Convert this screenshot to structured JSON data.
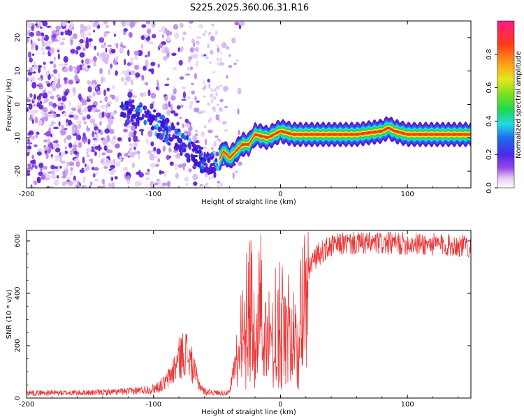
{
  "title": "S225.2025.360.06.31.R16",
  "chart_data": [
    {
      "type": "heatmap",
      "name": "spectrogram",
      "xlabel": "Height of straight line (km)",
      "ylabel": "Frequency (Hz)",
      "xlim": [
        -200,
        150
      ],
      "ylim": [
        -25,
        25
      ],
      "x_ticks": [
        "-200",
        "-100",
        "0",
        "100"
      ],
      "y_ticks": [
        "-20",
        "-10",
        "0",
        "10",
        "20"
      ],
      "ridge": {
        "x": [
          -120,
          -110,
          -100,
          -90,
          -80,
          -70,
          -60,
          -50,
          -45,
          -40,
          -35,
          -30,
          -25,
          -20,
          -10,
          0,
          10,
          20,
          40,
          60,
          80,
          85,
          90,
          100,
          120,
          150
        ],
        "y": [
          -2,
          -3,
          -5,
          -8,
          -11,
          -14,
          -17,
          -18,
          -14,
          -16,
          -14,
          -12,
          -12,
          -9,
          -10,
          -8,
          -9,
          -9,
          -9,
          -9,
          -8,
          -7,
          -8,
          -9,
          -9,
          -9
        ]
      },
      "colorbar": {
        "label": "Normalized spectral amplitude",
        "ticks": [
          "0.0",
          "0.2",
          "0.4",
          "0.6",
          "0.8"
        ],
        "range": [
          0,
          1
        ]
      }
    },
    {
      "type": "line",
      "name": "snr",
      "xlabel": "Height of straight line (km)",
      "ylabel": "SNR (10 * v/v)",
      "xlim": [
        -200,
        150
      ],
      "ylim": [
        0,
        640
      ],
      "x_ticks": [
        "-200",
        "-100",
        "0",
        "100"
      ],
      "y_ticks": [
        "0",
        "200",
        "400",
        "600"
      ],
      "color": "#ee3333",
      "envelope": {
        "x": [
          -200,
          -150,
          -120,
          -100,
          -90,
          -85,
          -80,
          -75,
          -70,
          -65,
          -60,
          -50,
          -40,
          -35,
          -30,
          -25,
          -20,
          -15,
          -10,
          -5,
          0,
          5,
          10,
          15,
          20,
          25,
          30,
          40,
          50,
          70,
          100,
          150
        ],
        "y": [
          20,
          20,
          25,
          35,
          60,
          100,
          150,
          180,
          130,
          60,
          25,
          20,
          20,
          150,
          280,
          350,
          380,
          370,
          330,
          310,
          300,
          280,
          250,
          300,
          460,
          520,
          550,
          580,
          590,
          590,
          590,
          580
        ]
      }
    }
  ]
}
